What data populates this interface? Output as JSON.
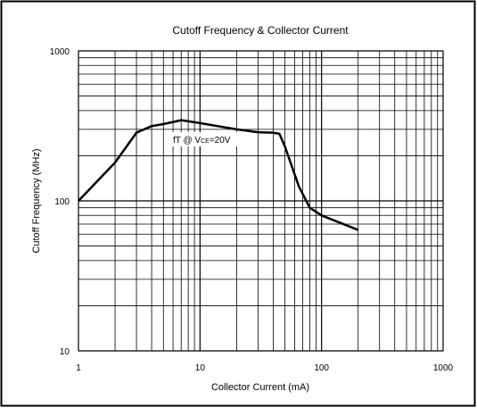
{
  "chart_data": {
    "type": "line",
    "title": "Cutoff  Frequency & Collector Current",
    "x_label": "Collector Current (mA)",
    "y_label": "Cutoff Frequency (MHz)",
    "annotation": [
      "fT @ V",
      "CE",
      "=20V"
    ],
    "log_x": true,
    "log_y": true,
    "grid": true,
    "minor_grid": true,
    "xlim": [
      1,
      1000
    ],
    "xticks": [
      1,
      10,
      100,
      1000
    ],
    "ylim": [
      10,
      1000
    ],
    "yticks": [
      10,
      100,
      1000
    ],
    "x": [
      1,
      2,
      3,
      4,
      5,
      7,
      10,
      20,
      30,
      40,
      45,
      50,
      65,
      80,
      100,
      200
    ],
    "series": [
      {
        "name": "fT",
        "color": "#000000",
        "values": [
          100,
          180,
          285,
          315,
          325,
          345,
          330,
          300,
          287,
          285,
          280,
          230,
          125,
          90,
          80,
          64
        ]
      }
    ]
  }
}
